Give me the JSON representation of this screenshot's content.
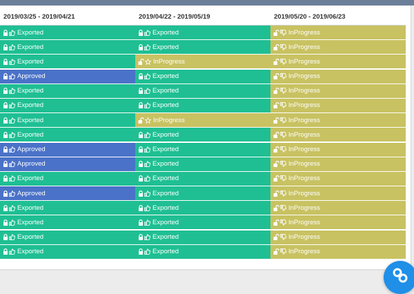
{
  "headers": [
    "2019/03/25 - 2019/04/21",
    "2019/04/22 - 2019/05/19",
    "2019/05/20 - 2019/06/23"
  ],
  "status_labels": {
    "exported": "Exported",
    "approved": "Approved",
    "inprogress": "InProgress"
  },
  "status_colors": {
    "exported": "#1fbf93",
    "approved": "#4a72c8",
    "inprogress": "#c8c262"
  },
  "status_icons": {
    "exported": [
      "lock-closed-icon",
      "thumbs-up-icon"
    ],
    "approved": [
      "lock-closed-icon",
      "thumbs-up-icon"
    ],
    "inprogress": [
      "lock-open-icon",
      "thumbs-down-icon"
    ],
    "inprogress-star": [
      "lock-open-icon",
      "star-icon"
    ]
  },
  "rows": [
    [
      {
        "status": "exported"
      },
      {
        "status": "exported"
      },
      {
        "status": "inprogress"
      }
    ],
    [
      {
        "status": "exported"
      },
      {
        "status": "exported"
      },
      {
        "status": "inprogress"
      }
    ],
    [
      {
        "status": "exported"
      },
      {
        "status": "inprogress",
        "icon": "star"
      },
      {
        "status": "inprogress"
      }
    ],
    [
      {
        "status": "approved"
      },
      {
        "status": "exported"
      },
      {
        "status": "inprogress"
      }
    ],
    [
      {
        "status": "exported"
      },
      {
        "status": "exported"
      },
      {
        "status": "inprogress"
      }
    ],
    [
      {
        "status": "exported"
      },
      {
        "status": "exported"
      },
      {
        "status": "inprogress"
      }
    ],
    [
      {
        "status": "exported"
      },
      {
        "status": "inprogress",
        "icon": "star"
      },
      {
        "status": "inprogress"
      }
    ],
    [
      {
        "status": "exported"
      },
      {
        "status": "exported"
      },
      {
        "status": "inprogress"
      }
    ],
    [
      {
        "status": "approved"
      },
      {
        "status": "exported"
      },
      {
        "status": "inprogress"
      }
    ],
    [
      {
        "status": "approved"
      },
      {
        "status": "exported"
      },
      {
        "status": "inprogress"
      }
    ],
    [
      {
        "status": "exported"
      },
      {
        "status": "exported"
      },
      {
        "status": "inprogress"
      }
    ],
    [
      {
        "status": "approved"
      },
      {
        "status": "exported"
      },
      {
        "status": "inprogress"
      }
    ],
    [
      {
        "status": "exported"
      },
      {
        "status": "exported"
      },
      {
        "status": "inprogress"
      }
    ],
    [
      {
        "status": "exported"
      },
      {
        "status": "exported"
      },
      {
        "status": "inprogress"
      }
    ],
    [
      {
        "status": "exported"
      },
      {
        "status": "exported"
      },
      {
        "status": "inprogress"
      }
    ],
    [
      {
        "status": "exported"
      },
      {
        "status": "exported"
      },
      {
        "status": "inprogress"
      }
    ]
  ],
  "fab": {
    "icon": "link-icon"
  }
}
